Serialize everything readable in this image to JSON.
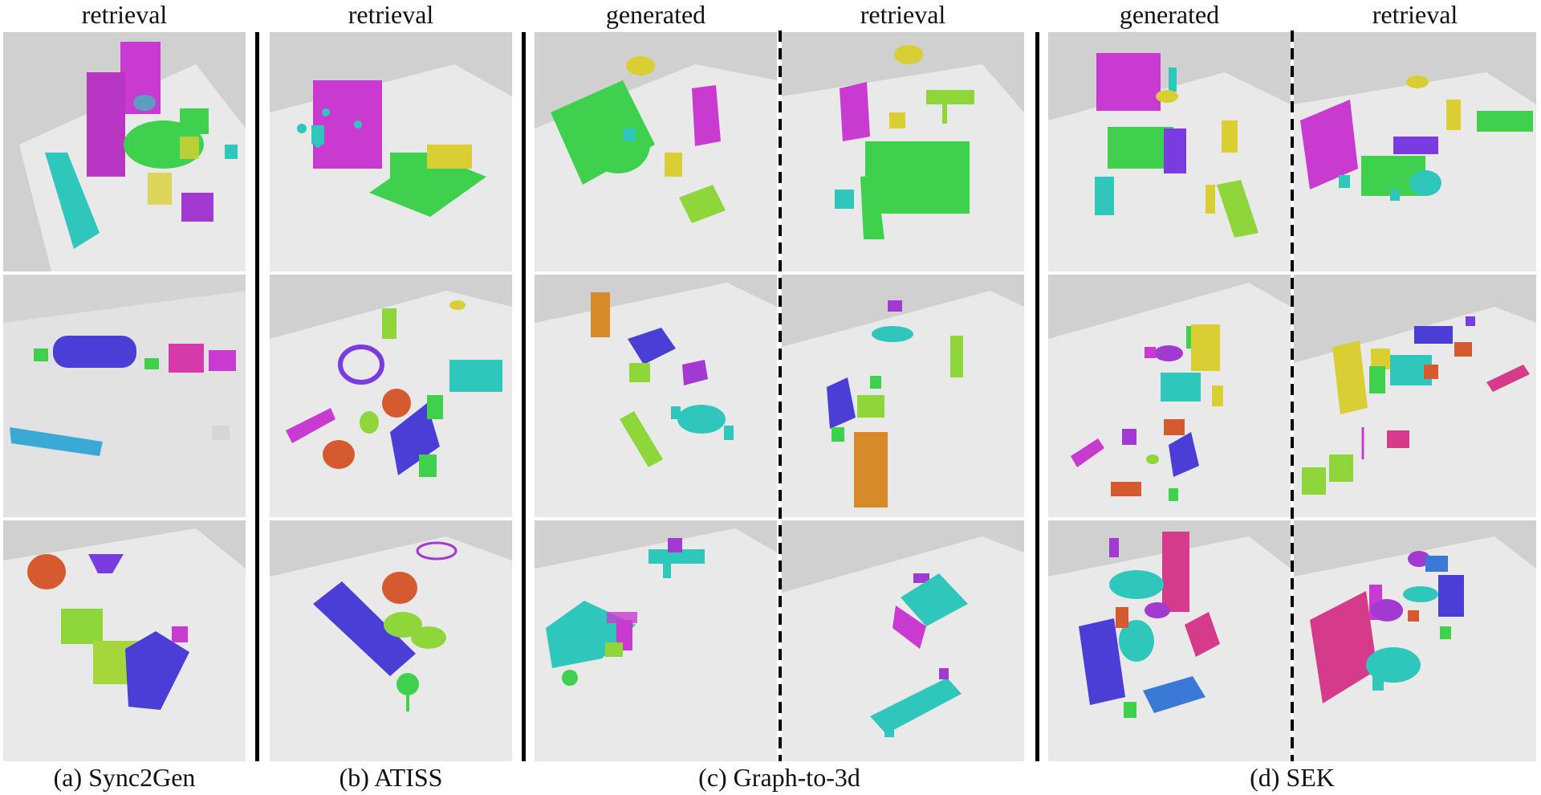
{
  "figure": {
    "column_titles": [
      "retrieval",
      "retrieval",
      "generated",
      "retrieval",
      "generated",
      "retrieval"
    ],
    "captions": [
      "(a) Sync2Gen",
      "(b) ATISS",
      "(c) Graph-to-3d",
      "(d) SEK"
    ],
    "rows": 3,
    "palette": {
      "magenta": "#c93ad1",
      "green": "#3fd14d",
      "cyan": "#2fc7bb",
      "lime": "#8fd63a",
      "yellow": "#d9cf35",
      "purple": "#7a3be0",
      "blue": "#4a3ed6",
      "orange": "#d68a2a",
      "red": "#d65a2f",
      "pink": "#d63a8a",
      "skyblue": "#3aa9d6",
      "azure": "#3a7ad6"
    }
  }
}
